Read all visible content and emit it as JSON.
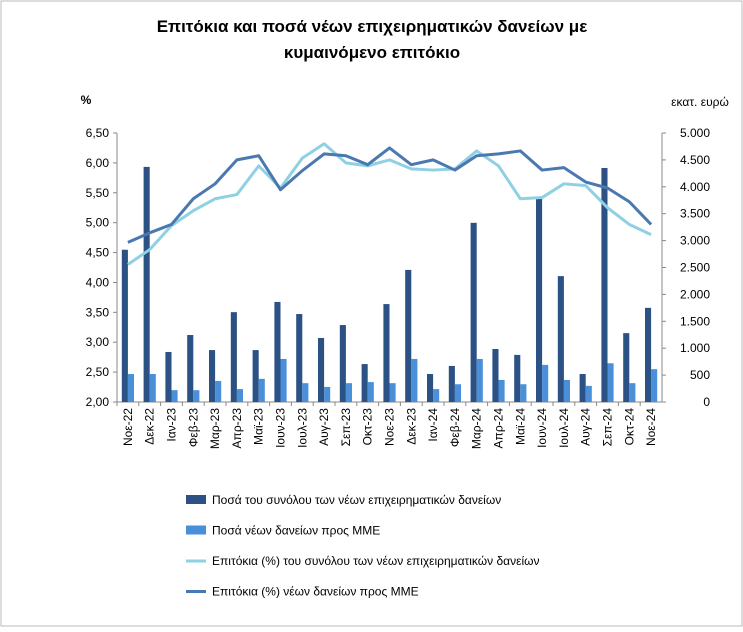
{
  "chart_data": {
    "type": "bar",
    "title": [
      "Επιτόκια και ποσά νέων επιχειρηματικών δανείων με",
      "κυμαινόμενο επιτόκιο"
    ],
    "y_label": "%",
    "y2_label": "εκατ. ευρώ",
    "categories": [
      "Νοε-22",
      "Δεκ-22",
      "Ιαν-23",
      "Φεβ-23",
      "Μαρ-23",
      "Απρ-23",
      "Μαϊ-23",
      "Ιουν-23",
      "Ιουλ-23",
      "Αυγ-23",
      "Σεπ-23",
      "Οκτ-23",
      "Νοε-23",
      "Δεκ-23",
      "Ιαν-24",
      "Φεβ-24",
      "Μαρ-24",
      "Απρ-24",
      "Μαϊ-24",
      "Ιουν-24",
      "Ιουλ-24",
      "Αυγ-24",
      "Σεπ-24",
      "Οκτ-24",
      "Νοε-24"
    ],
    "ylim": [
      2,
      6.5
    ],
    "yticks": [
      {
        "value": 2,
        "label": "2,00"
      },
      {
        "value": 2.5,
        "label": "2,50"
      },
      {
        "value": 3,
        "label": "3,00"
      },
      {
        "value": 3.5,
        "label": "3,50"
      },
      {
        "value": 4,
        "label": "4,00"
      },
      {
        "value": 4.5,
        "label": "4,50"
      },
      {
        "value": 5,
        "label": "5,00"
      },
      {
        "value": 5.5,
        "label": "5,50"
      },
      {
        "value": 6,
        "label": "6,00"
      },
      {
        "value": 6.5,
        "label": "6,50"
      }
    ],
    "y2lim": [
      0,
      5000
    ],
    "y2ticks": [
      0,
      500,
      {
        "value": 1000,
        "label": "1.000"
      },
      {
        "value": 1500,
        "label": "1.500"
      },
      {
        "value": 2000,
        "label": "2.000"
      },
      {
        "value": 2500,
        "label": "2.500"
      },
      {
        "value": 3000,
        "label": "3.000"
      },
      {
        "value": 3500,
        "label": "3.500"
      },
      {
        "value": 4000,
        "label": "4.000"
      },
      {
        "value": 4500,
        "label": "4.500"
      },
      {
        "value": 5000,
        "label": "5.000"
      }
    ],
    "grid": false,
    "series": [
      {
        "name": "Ποσά του συνόλου των νέων επιχειρηματικών δανείων",
        "type": "bar",
        "axis": "y2",
        "color": "#2b5185",
        "values": [
          2830,
          4370,
          930,
          1245,
          965,
          1670,
          965,
          1860,
          1635,
          1190,
          1430,
          705,
          1820,
          2455,
          520,
          670,
          3330,
          985,
          875,
          3810,
          2340,
          520,
          4350,
          1280,
          1750
        ]
      },
      {
        "name": "Ποσά νέων δανείων προς ΜΜΕ",
        "type": "bar",
        "axis": "y2",
        "color": "#4a8fd9",
        "values": [
          520,
          520,
          220,
          220,
          390,
          240,
          430,
          800,
          350,
          280,
          350,
          370,
          350,
          800,
          240,
          330,
          800,
          410,
          330,
          690,
          410,
          300,
          720,
          350,
          610
        ]
      },
      {
        "name": "Επιτόκια (%) του συνόλου των νέων επιχειρηματικών δανείων",
        "type": "line",
        "axis": "y",
        "color": "#8fd0e2",
        "values": [
          4.3,
          4.55,
          4.95,
          5.2,
          5.4,
          5.47,
          5.95,
          5.58,
          6.08,
          6.32,
          6.0,
          5.95,
          6.05,
          5.9,
          5.88,
          5.9,
          6.2,
          5.95,
          5.4,
          5.42,
          5.65,
          5.62,
          5.25,
          4.97,
          4.8
        ]
      },
      {
        "name": "Επιτόκια (%) νέων δανείων προς ΜΜΕ",
        "type": "line",
        "axis": "y",
        "color": "#4a78b0",
        "values": [
          4.67,
          4.83,
          4.97,
          5.4,
          5.65,
          6.05,
          6.12,
          5.55,
          5.87,
          6.15,
          6.12,
          5.97,
          6.25,
          5.97,
          6.05,
          5.88,
          6.12,
          6.15,
          6.2,
          5.88,
          5.92,
          5.68,
          5.58,
          5.35,
          4.97
        ]
      }
    ]
  }
}
